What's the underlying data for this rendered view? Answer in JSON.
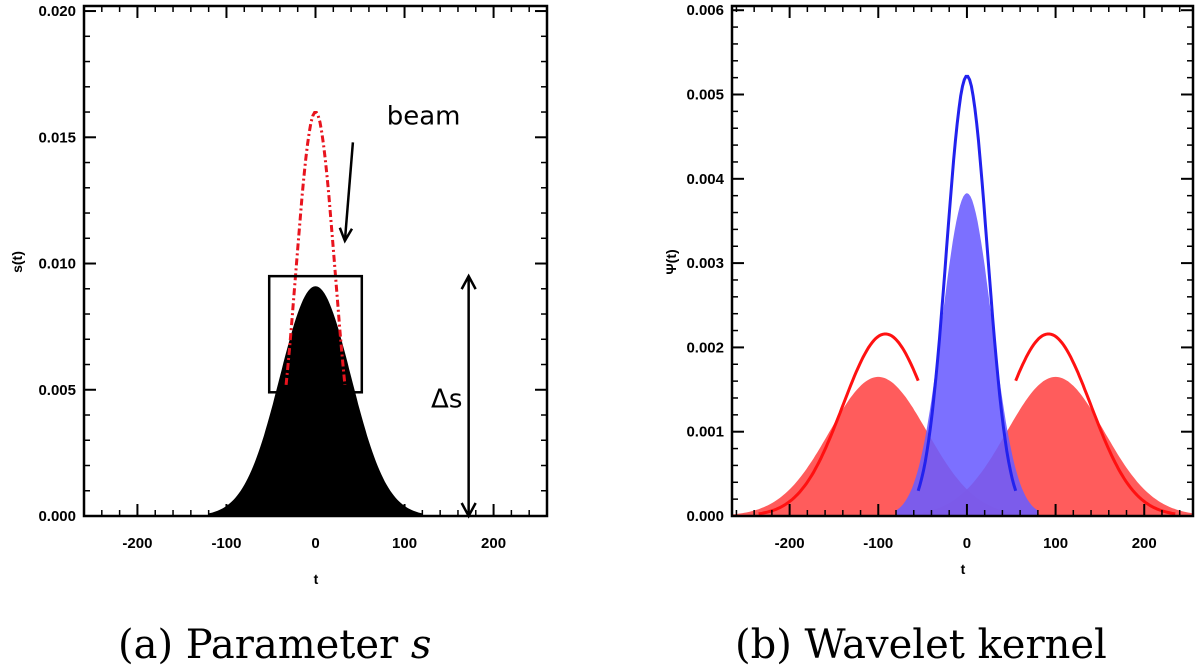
{
  "chart_data": [
    {
      "type": "area",
      "caption": "(a) Parameter",
      "caption_var": "s",
      "xlabel": "t",
      "ylabel": "s(t)",
      "xlim": [
        -260,
        260
      ],
      "ylim": [
        0,
        0.0202
      ],
      "xticks": [
        "-200",
        "-100",
        "0",
        "100",
        "200"
      ],
      "xtick_values": [
        -200,
        -100,
        0,
        100,
        200
      ],
      "yticks": [
        "0.000",
        "0.005",
        "0.010",
        "0.015",
        "0.020"
      ],
      "ytick_values": [
        0,
        0.005,
        0.01,
        0.015,
        0.02
      ],
      "series": [
        {
          "name": "s(t)",
          "style": "filled",
          "color": "#000000",
          "peak": 0.0091,
          "sigma": 40,
          "center": 0,
          "range": [
            -120,
            120
          ]
        },
        {
          "name": "beam",
          "style": "dash-dot",
          "color": "#e8141e",
          "peak": 0.016,
          "sigma": 22,
          "center": 0,
          "range": [
            -33,
            33
          ]
        }
      ],
      "box": {
        "t0": -52,
        "t1": 52,
        "s0": 0.0049,
        "s1": 0.0095
      },
      "arrow_beam": {
        "label": "beam",
        "from": [
          42,
          0.0148
        ],
        "to": [
          33,
          0.0109
        ],
        "label_at": [
          80,
          0.0155
        ]
      },
      "delta": {
        "label": "Δs",
        "t": 172,
        "s0": 0.0,
        "s1": 0.0095,
        "label_at": [
          150,
          0.0047
        ]
      }
    },
    {
      "type": "area",
      "caption": "(b) Wavelet kernel",
      "xlabel": "t",
      "ylabel": "Ψ(t)",
      "xlim": [
        -265,
        255
      ],
      "ylim": [
        0,
        0.00605
      ],
      "xticks": [
        "-200",
        "-100",
        "0",
        "100",
        "200"
      ],
      "xtick_values": [
        -200,
        -100,
        0,
        100,
        200
      ],
      "yticks": [
        "0.000",
        "0.001",
        "0.002",
        "0.003",
        "0.004",
        "0.005",
        "0.006"
      ],
      "ytick_values": [
        0,
        0.001,
        0.002,
        0.003,
        0.004,
        0.005,
        0.006
      ],
      "series": [
        {
          "name": "red filled left",
          "style": "filled",
          "color": "#ff4646",
          "center": -100,
          "peak": 0.00165,
          "sigma": 55,
          "range": [
            -265,
            50
          ]
        },
        {
          "name": "red filled right",
          "style": "filled",
          "color": "#ff4646",
          "center": 100,
          "peak": 0.00165,
          "sigma": 55,
          "range": [
            -50,
            255
          ]
        },
        {
          "name": "blue filled",
          "style": "filled",
          "color": "#6a5cff",
          "center": 0,
          "peak": 0.00383,
          "sigma": 28,
          "range": [
            -80,
            80
          ]
        },
        {
          "name": "red outline left",
          "style": "line",
          "color": "#ff1111",
          "center": -92,
          "peak": 0.00216,
          "sigma": 48,
          "range": [
            -235,
            -55
          ]
        },
        {
          "name": "red outline right",
          "style": "line",
          "color": "#ff1111",
          "center": 92,
          "peak": 0.00216,
          "sigma": 48,
          "range": [
            55,
            235
          ]
        },
        {
          "name": "blue outline",
          "style": "line",
          "color": "#2222ee",
          "center": 0,
          "peak": 0.00522,
          "sigma": 23,
          "range": [
            -55,
            55
          ]
        }
      ]
    }
  ],
  "colors": {
    "red": "#e8141e",
    "blue": "#3b2bff",
    "black": "#000000"
  }
}
